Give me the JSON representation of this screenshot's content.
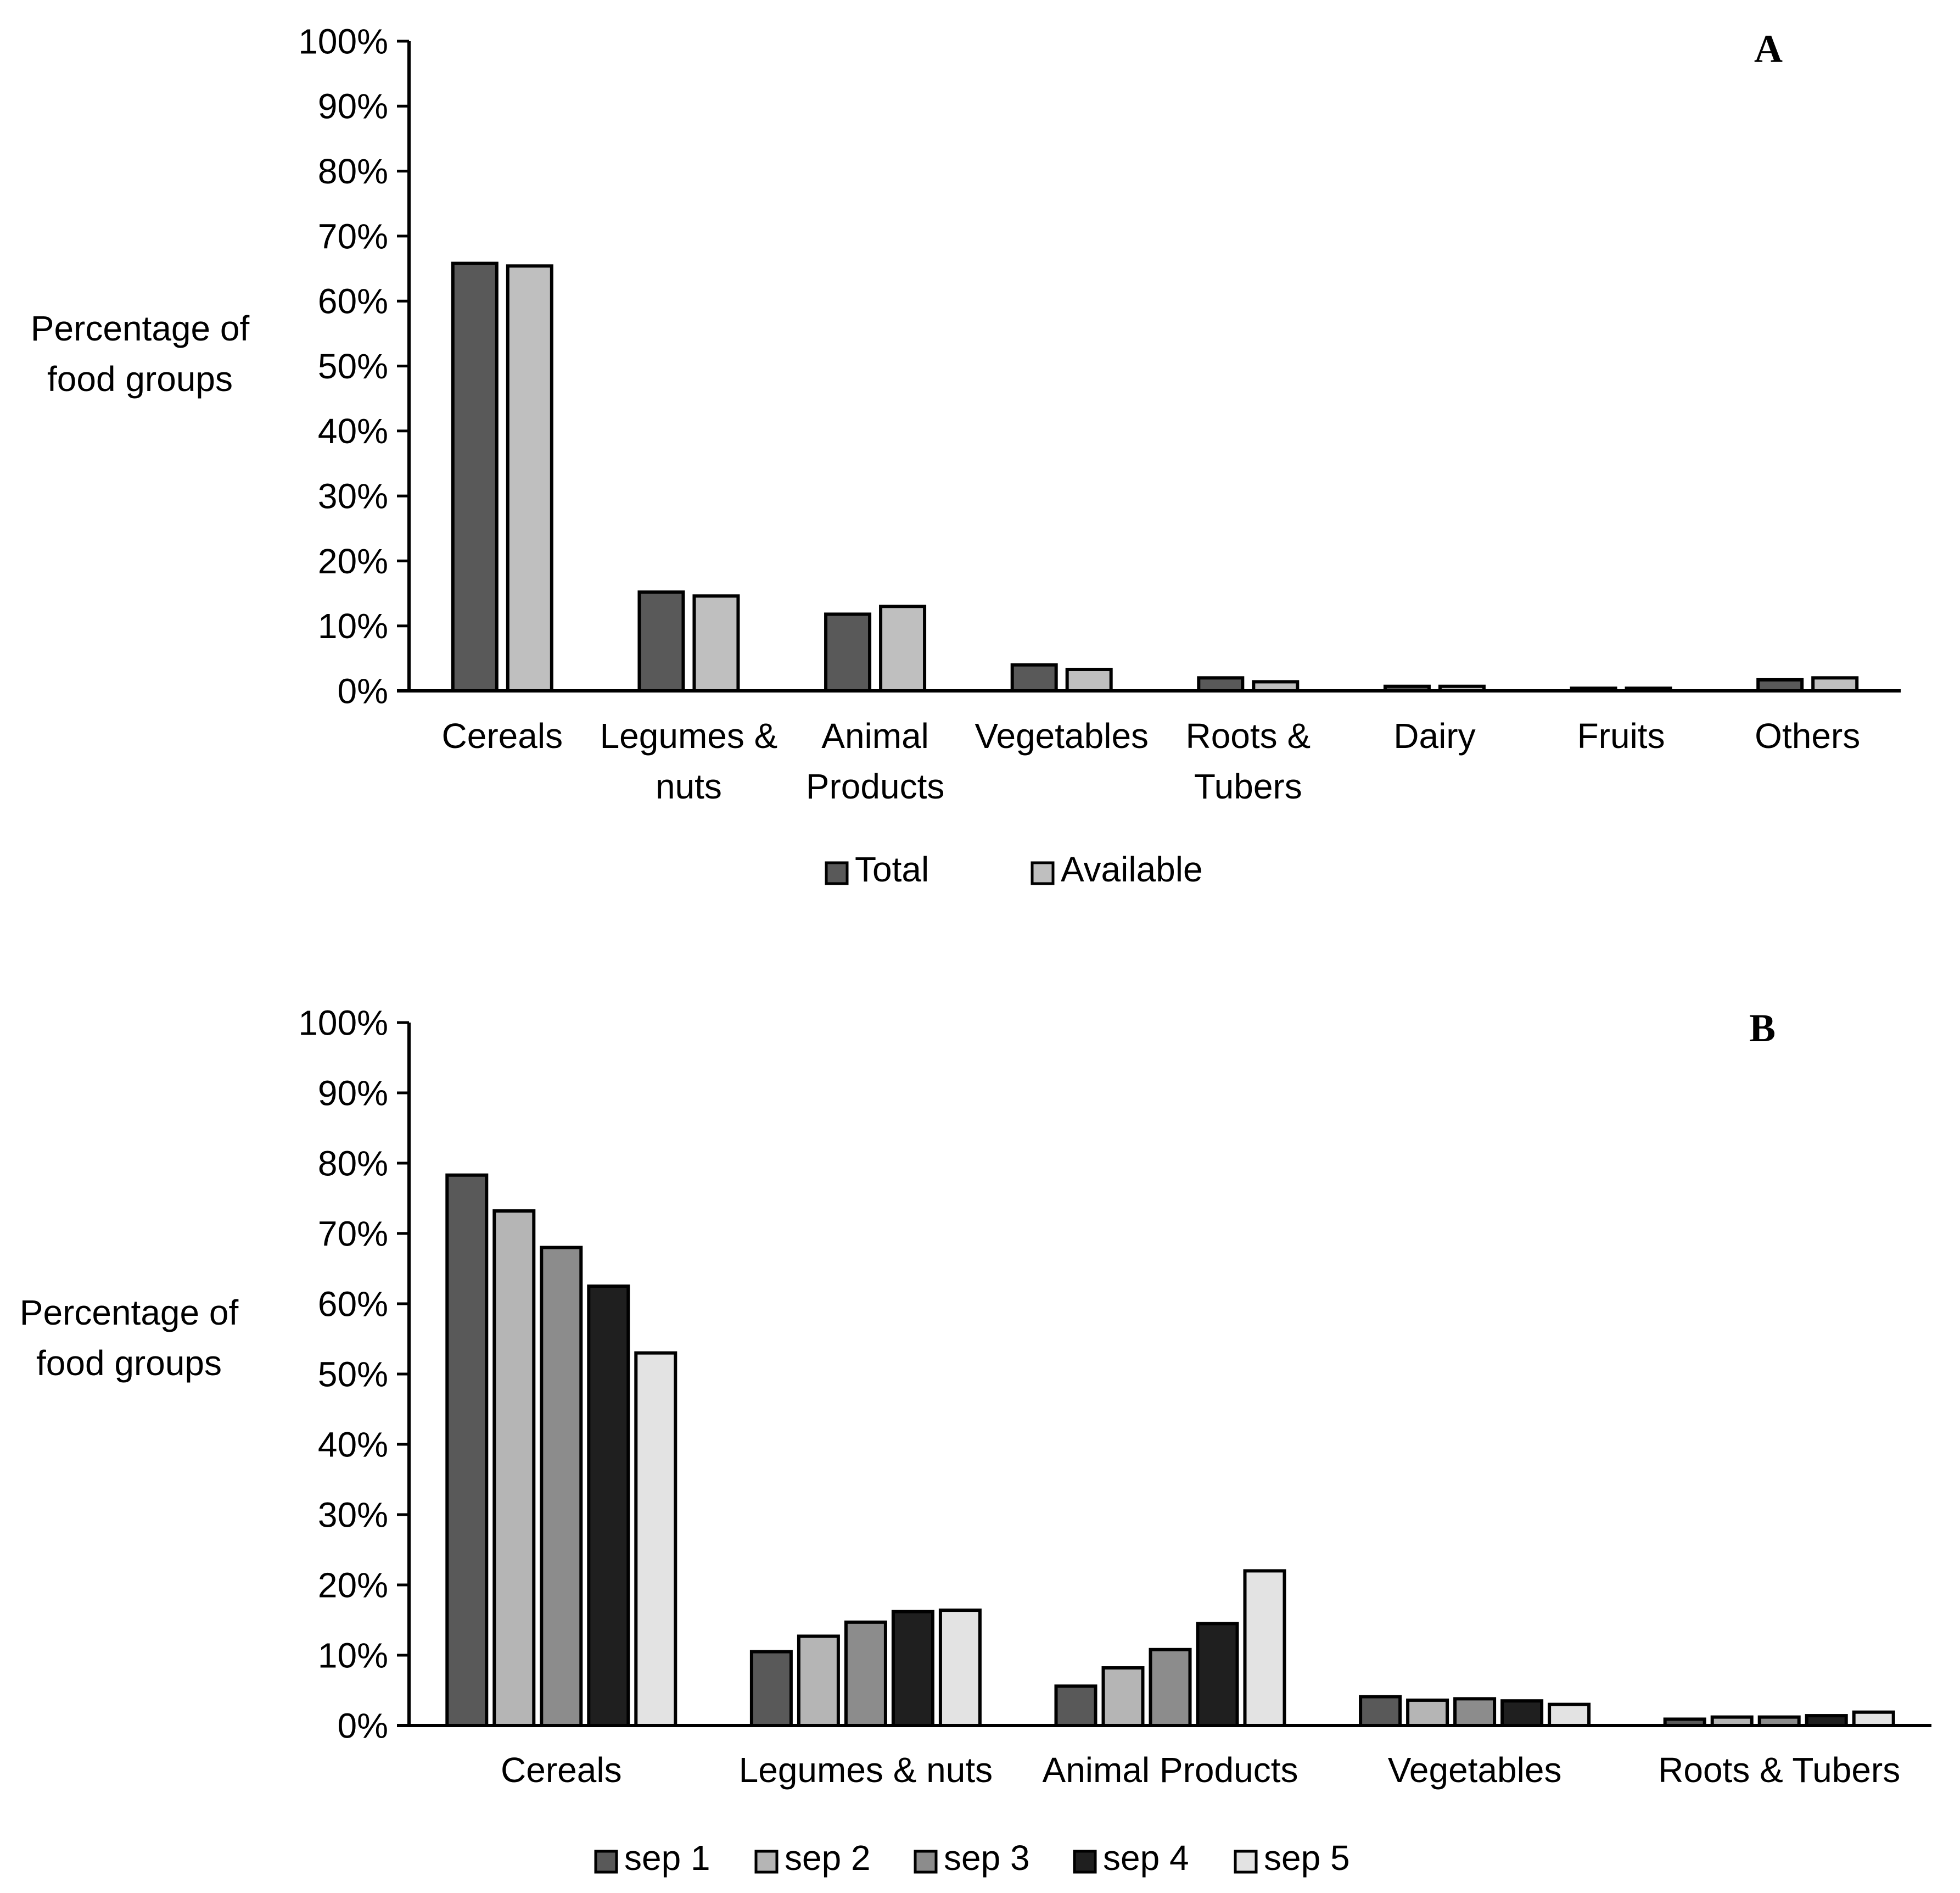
{
  "chart_data": [
    {
      "type": "bar",
      "panel": "A",
      "title": "",
      "xlabel": "",
      "ylabel": [
        "Percentage of",
        "food groups"
      ],
      "ylim": [
        0,
        100
      ],
      "yticks": [
        "0%",
        "10%",
        "20%",
        "30%",
        "40%",
        "50%",
        "60%",
        "70%",
        "80%",
        "90%",
        "100%"
      ],
      "categories": [
        [
          "Cereals"
        ],
        [
          "Legumes &",
          "nuts"
        ],
        [
          "Animal",
          "Products"
        ],
        [
          "Vegetables"
        ],
        [
          "Roots &",
          "Tubers"
        ],
        [
          "Dairy"
        ],
        [
          "Fruits"
        ],
        [
          "Others"
        ]
      ],
      "series": [
        {
          "name": "Total",
          "color": "#595959",
          "values": [
            65.8,
            15.2,
            11.8,
            4.0,
            2.0,
            0.7,
            0.4,
            1.7
          ]
        },
        {
          "name": "Available",
          "color": "#bfbfbf",
          "values": [
            65.4,
            14.6,
            13.0,
            3.3,
            1.4,
            0.7,
            0.4,
            2.0
          ]
        }
      ],
      "grid": false,
      "legend": "bottom"
    },
    {
      "type": "bar",
      "panel": "B",
      "title": "",
      "xlabel": "",
      "ylabel": [
        "Percentage of",
        "food groups"
      ],
      "ylim": [
        0,
        100
      ],
      "yticks": [
        "0%",
        "10%",
        "20%",
        "30%",
        "40%",
        "50%",
        "60%",
        "70%",
        "80%",
        "90%",
        "100%"
      ],
      "categories": [
        [
          "Cereals"
        ],
        [
          "Legumes & nuts"
        ],
        [
          "Animal Products"
        ],
        [
          "Vegetables"
        ],
        [
          "Roots & Tubers"
        ]
      ],
      "series": [
        {
          "name": "sep 1",
          "color": "#595959",
          "values": [
            78.3,
            10.5,
            5.6,
            4.1,
            0.9
          ]
        },
        {
          "name": "sep 2",
          "color": "#b5b5b5",
          "values": [
            73.2,
            12.7,
            8.2,
            3.6,
            1.2
          ]
        },
        {
          "name": "sep 3",
          "color": "#8c8c8c",
          "values": [
            68.0,
            14.7,
            10.8,
            3.8,
            1.2
          ]
        },
        {
          "name": "sep 4",
          "color": "#1f1f1f",
          "values": [
            62.5,
            16.2,
            14.5,
            3.5,
            1.4
          ]
        },
        {
          "name": "sep 5",
          "color": "#e3e3e3",
          "values": [
            53.0,
            16.4,
            22.0,
            3.0,
            1.9
          ]
        }
      ],
      "grid": false,
      "legend": "bottom"
    }
  ]
}
